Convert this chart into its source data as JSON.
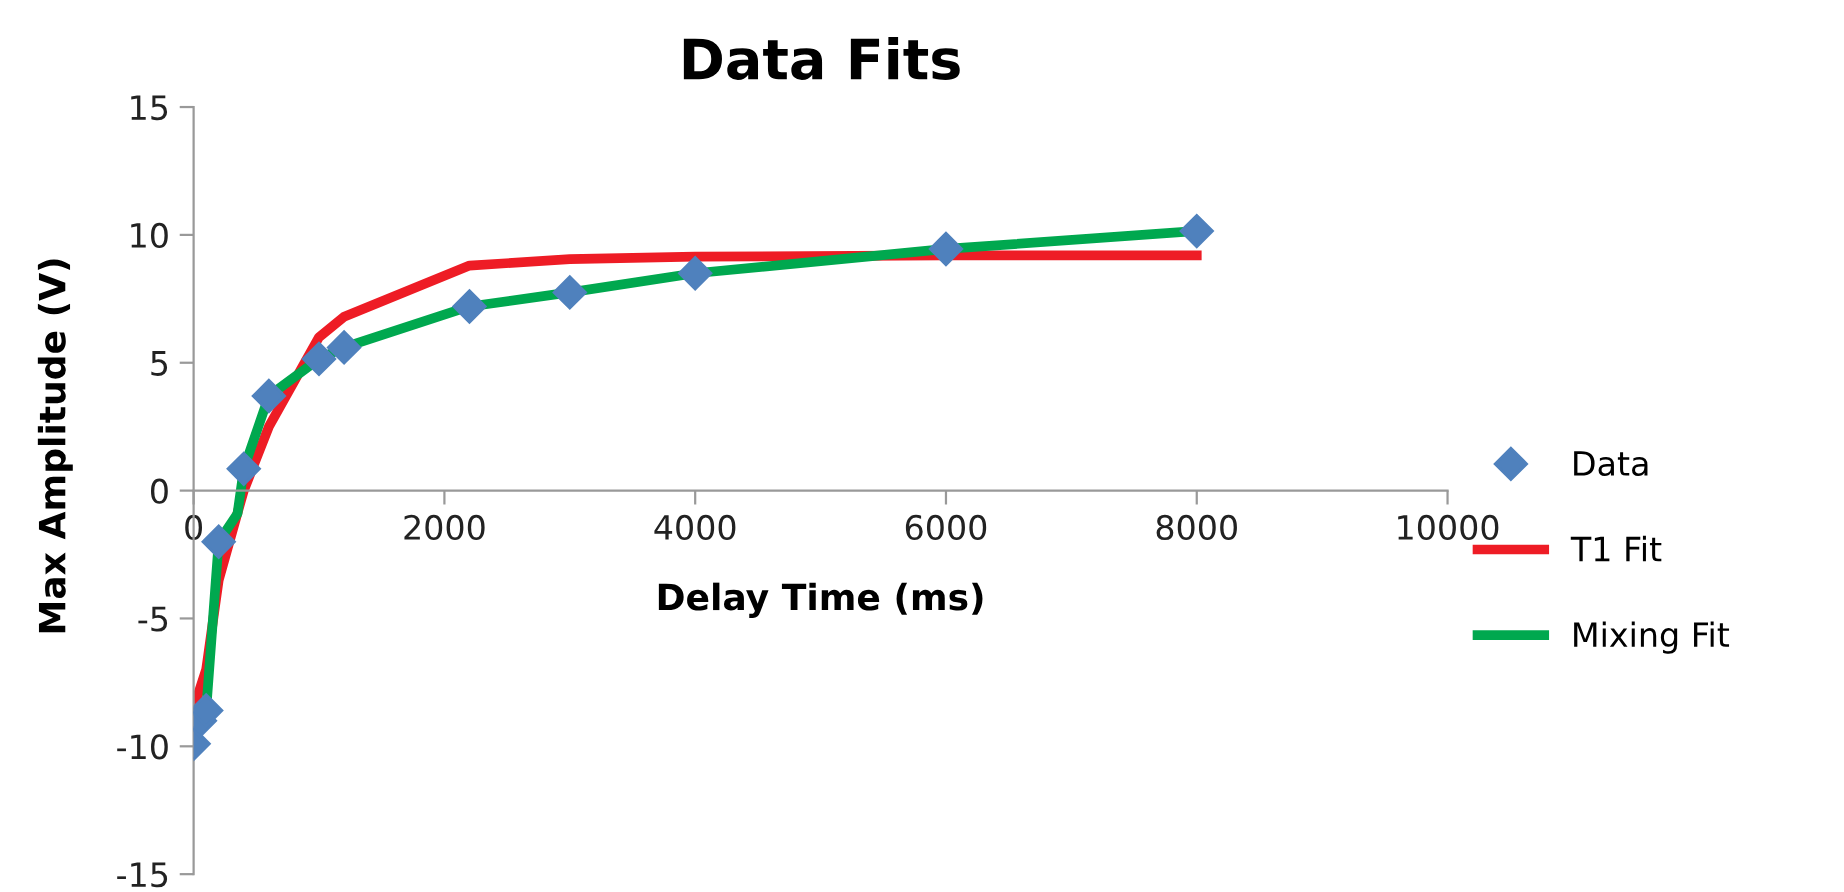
{
  "chart_data": {
    "type": "line",
    "title": "Data Fits",
    "xlabel": "Delay Time (ms)",
    "ylabel": "Max Amplitude (V)",
    "xlim": [
      0,
      10000
    ],
    "xticks": [
      0,
      2000,
      4000,
      6000,
      8000,
      10000
    ],
    "ylim": [
      -15,
      15
    ],
    "yticks": [
      -15,
      -10,
      -5,
      0,
      5,
      10,
      15
    ],
    "grid": false,
    "legend": "right",
    "series": [
      {
        "name": "T1 Fit",
        "marker": "none",
        "color": "#ee1c25",
        "x": [
          0,
          100,
          200,
          400,
          600,
          1000,
          1200,
          2200,
          3000,
          4000,
          6000,
          8000
        ],
        "values": [
          -8.5,
          -7,
          -3.5,
          0,
          2.5,
          6,
          6.8,
          8.8,
          9.05,
          9.15,
          9.2,
          9.2
        ]
      },
      {
        "name": "Mixing Fit",
        "marker": "none",
        "color": "#00a84f",
        "x": [
          0,
          50,
          100,
          200,
          350,
          400,
          600,
          1000,
          1200,
          2200,
          3000,
          4000,
          6000,
          8000
        ],
        "values": [
          -9.9,
          -9.0,
          -8.6,
          -2.0,
          -0.9,
          0.85,
          3.7,
          5.15,
          5.6,
          7.2,
          7.75,
          8.5,
          9.45,
          10.15
        ]
      },
      {
        "name": "Data",
        "type": "scatter",
        "marker": "diamond",
        "color": "#4f81bd",
        "x": [
          0,
          50,
          100,
          200,
          400,
          600,
          1000,
          1200,
          2200,
          3000,
          4000,
          6000,
          8000
        ],
        "values": [
          -9.9,
          -9.0,
          -8.6,
          -2.0,
          0.85,
          3.7,
          5.15,
          5.6,
          7.2,
          7.75,
          8.5,
          9.45,
          10.15
        ]
      }
    ]
  }
}
